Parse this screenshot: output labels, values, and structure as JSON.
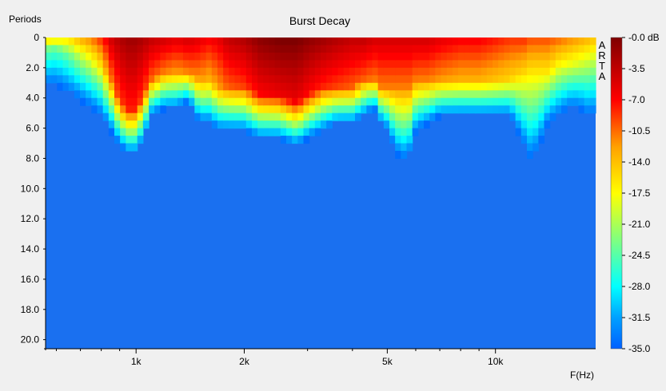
{
  "chart_data": {
    "type": "heatmap",
    "title": "Burst Decay",
    "ylabel": "Periods",
    "xlabel": "F(Hz)",
    "watermark": "ARTA",
    "x_scale": "log",
    "xlim": [
      560,
      19000
    ],
    "ylim": [
      0,
      20.6
    ],
    "x_ticks": [
      {
        "value": 1000,
        "label": "1k"
      },
      {
        "value": 2000,
        "label": "2k"
      },
      {
        "value": 5000,
        "label": "5k"
      },
      {
        "value": 10000,
        "label": "10k"
      }
    ],
    "x_minor_ticks": [
      600,
      700,
      800,
      900,
      3000,
      4000,
      6000,
      7000,
      8000,
      9000,
      20000
    ],
    "y_ticks": [
      {
        "value": 0,
        "label": "0"
      },
      {
        "value": 2,
        "label": "2.0"
      },
      {
        "value": 4,
        "label": "4.0"
      },
      {
        "value": 6,
        "label": "6.0"
      },
      {
        "value": 8,
        "label": "8.0"
      },
      {
        "value": 10,
        "label": "10.0"
      },
      {
        "value": 12,
        "label": "12.0"
      },
      {
        "value": 14,
        "label": "14.0"
      },
      {
        "value": 16,
        "label": "16.0"
      },
      {
        "value": 18,
        "label": "18.0"
      },
      {
        "value": 20,
        "label": "20.0"
      }
    ],
    "colorbar": {
      "min": -35.0,
      "max": 0.0,
      "unit": "dB",
      "labels": [
        "-0.0 dB",
        "-3.5",
        "-7.0",
        "-10.5",
        "-14.0",
        "-17.5",
        "-21.0",
        "-24.5",
        "-28.0",
        "-31.5",
        "-35.0"
      ],
      "colors": [
        "#7f0000",
        "#ff0000",
        "#ff8000",
        "#ffff00",
        "#80ff80",
        "#00ffff",
        "#0080ff",
        "#0060ff"
      ],
      "floor_color": "#1a70f0"
    },
    "decay_profile": {
      "frequencies": [
        560,
        600,
        650,
        700,
        750,
        800,
        850,
        900,
        950,
        1000,
        1050,
        1100,
        1200,
        1300,
        1400,
        1500,
        1600,
        1700,
        1800,
        2000,
        2200,
        2500,
        2800,
        3000,
        3300,
        3600,
        4000,
        4300,
        4600,
        4800,
        5000,
        5300,
        5500,
        5800,
        6000,
        6500,
        7000,
        8000,
        9000,
        10000,
        11000,
        12000,
        12500,
        13000,
        13500,
        14000,
        15000,
        16000,
        17000,
        18000,
        19000
      ],
      "peak_db": [
        -17,
        -18,
        -17,
        -14,
        -12,
        -9,
        -5,
        -3,
        -2,
        -2,
        -3,
        -4,
        -5,
        -6,
        -5,
        -6,
        -7,
        -6,
        -4,
        -3,
        -1,
        0,
        0,
        -1,
        -2,
        -3,
        -4,
        -4,
        -5,
        -5,
        -5,
        -5,
        -5,
        -5,
        -5,
        -5,
        -6,
        -7,
        -7,
        -8,
        -9,
        -9,
        -10,
        -10,
        -10,
        -10,
        -11,
        -12,
        -13,
        -14,
        -15
      ],
      "decay_end_periods": [
        3.0,
        3.0,
        3.5,
        4.0,
        4.5,
        5.0,
        6.0,
        7.0,
        7.5,
        7.5,
        6.5,
        5.0,
        4.5,
        4.5,
        4.0,
        5.5,
        5.5,
        6.0,
        6.0,
        6.0,
        6.5,
        6.5,
        7.0,
        6.5,
        6.0,
        5.5,
        5.5,
        5.0,
        4.5,
        5.5,
        6.0,
        7.5,
        8.0,
        7.5,
        6.0,
        5.5,
        5.0,
        5.0,
        5.0,
        5.0,
        5.0,
        7.0,
        8.0,
        7.5,
        6.5,
        5.5,
        5.0,
        4.5,
        4.5,
        5.0,
        5.0
      ],
      "decay_start_periods": [
        0.5,
        0.5,
        0.8,
        1.0,
        1.2,
        1.5,
        2.5,
        4.0,
        4.5,
        4.5,
        3.5,
        2.5,
        2.0,
        2.0,
        2.0,
        2.5,
        2.5,
        3.0,
        3.0,
        3.0,
        3.5,
        3.5,
        4.0,
        3.5,
        3.0,
        3.0,
        3.0,
        2.5,
        2.5,
        3.0,
        3.0,
        3.0,
        3.0,
        3.0,
        2.5,
        2.5,
        2.5,
        2.5,
        2.5,
        2.5,
        2.5,
        2.0,
        2.0,
        2.0,
        2.0,
        2.0,
        1.5,
        1.5,
        1.5,
        1.5,
        1.5
      ]
    }
  }
}
